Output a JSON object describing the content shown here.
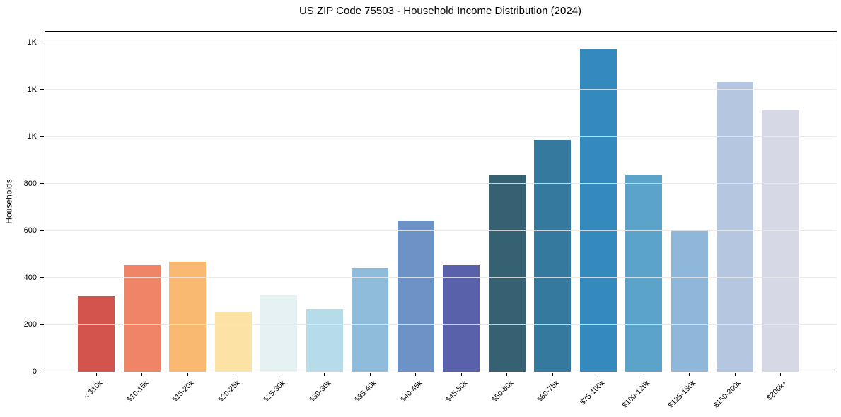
{
  "chart_data": {
    "type": "bar",
    "title": "US ZIP Code 75503 - Household Income Distribution (2024)",
    "xlabel": "",
    "ylabel": "Households",
    "categories": [
      "< $10k",
      "$10-15k",
      "$15-20k",
      "$20-25k",
      "$25-30k",
      "$30-35k",
      "$35-40k",
      "$40-45k",
      "$45-50k",
      "$50-60k",
      "$60-75k",
      "$75-100k",
      "$100-125k",
      "$125-150k",
      "$150-200k",
      "$200k+"
    ],
    "values": [
      320,
      455,
      470,
      255,
      325,
      267,
      442,
      644,
      455,
      836,
      986,
      1374,
      838,
      602,
      1231,
      1112
    ],
    "bar_colors": [
      "#d2544d",
      "#f08466",
      "#fab970",
      "#fce3a5",
      "#e5f1f3",
      "#b6dcea",
      "#8fbcdb",
      "#6d93c6",
      "#5a61ab",
      "#366173",
      "#35799e",
      "#348abd",
      "#5ba3c8",
      "#8fb7d9",
      "#b5c7e0",
      "#d6d8e6"
    ],
    "ylim": [
      0,
      1445
    ],
    "yticks": [
      0,
      200,
      400,
      600,
      800,
      1000,
      1200,
      1400
    ],
    "ytick_labels": [
      "0",
      "200",
      "400",
      "600",
      "800",
      "1K",
      "1K",
      "1K"
    ],
    "grid": "horizontal",
    "grid_color": "#e6e6e6",
    "legend": "none"
  }
}
